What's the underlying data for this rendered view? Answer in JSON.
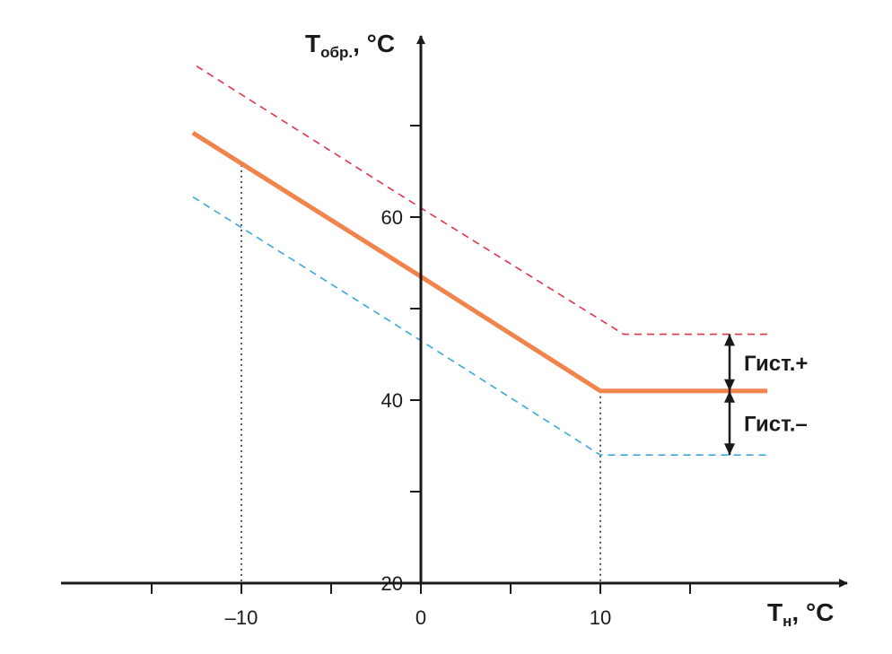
{
  "chart_data": {
    "type": "line",
    "title": "",
    "xlabel": {
      "main": "T",
      "sub": "н",
      "unit": ", °C"
    },
    "ylabel": {
      "main": "T",
      "sub": "обр.",
      "unit": ", °C"
    },
    "xlim": [
      -20,
      23.5
    ],
    "ylim": [
      19.5,
      77
    ],
    "x_ticks": [
      -15,
      -10,
      -5,
      0,
      5,
      10,
      15
    ],
    "x_tick_labels": [
      {
        "x": -10,
        "label": "–10"
      },
      {
        "x": 0,
        "label": "0"
      },
      {
        "x": 10,
        "label": "10"
      }
    ],
    "y_ticks": [
      20,
      30,
      40,
      50,
      60,
      70
    ],
    "y_tick_labels": [
      {
        "y": 20,
        "label": "20"
      },
      {
        "y": 40,
        "label": "40"
      },
      {
        "y": 60,
        "label": "60"
      }
    ],
    "series": [
      {
        "points": [
          [
            -12.7,
            69.2
          ],
          [
            0,
            53.5
          ],
          [
            10,
            41
          ],
          [
            19.3,
            41
          ]
        ]
      },
      {
        "points": [
          [
            -12.5,
            76.5
          ],
          [
            0,
            61
          ],
          [
            11.3,
            47.2
          ],
          [
            19.3,
            47.2
          ]
        ]
      },
      {
        "points": [
          [
            -12.7,
            62.2
          ],
          [
            0,
            46.5
          ],
          [
            10,
            34
          ],
          [
            19.3,
            34
          ]
        ]
      }
    ],
    "reference_lines": [
      {
        "x": -10,
        "y_from": 19.5,
        "y_to": 65.7
      },
      {
        "x": 10,
        "y_from": 19.5,
        "y_to": 41
      }
    ],
    "annotations": [
      {
        "text": "Гист.+",
        "x": 17.2,
        "y_from": 41,
        "y_to": 47.2
      },
      {
        "text": "Гист.–",
        "x": 17.2,
        "y_from": 34,
        "y_to": 41
      }
    ],
    "colors": {
      "main": "#f0844a",
      "upper": "#e0344a",
      "lower": "#3aa8d8",
      "axis": "#1a1a1a"
    },
    "grid": false
  }
}
